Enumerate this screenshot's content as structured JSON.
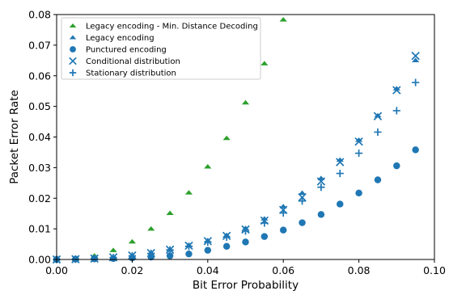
{
  "chart_data": {
    "type": "scatter",
    "xlabel": "Bit Error Probability",
    "ylabel": "Packet Error Rate",
    "xlim": [
      0.0,
      0.1
    ],
    "ylim": [
      0.0,
      0.08
    ],
    "grid": false,
    "legend_position": "top-left",
    "x_ticks": [
      "0.00",
      "0.02",
      "0.04",
      "0.06",
      "0.08",
      "0.10"
    ],
    "y_ticks": [
      "0.00",
      "0.01",
      "0.02",
      "0.03",
      "0.04",
      "0.05",
      "0.06",
      "0.07",
      "0.08"
    ],
    "series": [
      {
        "name": "Legacy encoding - Min. Distance Decoding",
        "marker": "triangle",
        "color": "#2ca02c",
        "x": [
          0.0,
          0.005,
          0.01,
          0.015,
          0.02,
          0.025,
          0.03,
          0.035,
          0.04,
          0.045,
          0.05,
          0.055,
          0.06
        ],
        "y": [
          0.0,
          0.0003,
          0.0012,
          0.003,
          0.0058,
          0.01,
          0.0151,
          0.0218,
          0.0303,
          0.0396,
          0.0512,
          0.064,
          0.0783
        ]
      },
      {
        "name": "Legacy encoding",
        "marker": "triangle",
        "color": "#1f77b4",
        "x": [
          0.0,
          0.005,
          0.01,
          0.015,
          0.02,
          0.025,
          0.03,
          0.035,
          0.04,
          0.045,
          0.05,
          0.055,
          0.06,
          0.065,
          0.07,
          0.075,
          0.08,
          0.085,
          0.09,
          0.095
        ],
        "y": [
          0.0,
          0.0001,
          0.0003,
          0.0007,
          0.0013,
          0.0022,
          0.0033,
          0.0046,
          0.0062,
          0.0079,
          0.0102,
          0.0133,
          0.0173,
          0.0217,
          0.0265,
          0.0325,
          0.039,
          0.047,
          0.0558,
          0.065
        ]
      },
      {
        "name": "Punctured encoding",
        "marker": "circle",
        "color": "#1f77b4",
        "x": [
          0.0,
          0.005,
          0.01,
          0.015,
          0.02,
          0.025,
          0.03,
          0.035,
          0.04,
          0.045,
          0.05,
          0.055,
          0.06,
          0.065,
          0.07,
          0.075,
          0.08,
          0.085,
          0.09,
          0.095
        ],
        "y": [
          0.0,
          0.0001,
          0.0002,
          0.0003,
          0.0005,
          0.0008,
          0.0012,
          0.0018,
          0.003,
          0.0043,
          0.0057,
          0.0075,
          0.0096,
          0.012,
          0.0147,
          0.0181,
          0.0217,
          0.026,
          0.0306,
          0.0358
        ]
      },
      {
        "name": "Conditional distribution",
        "marker": "x",
        "color": "#1f77b4",
        "x": [
          0.0,
          0.005,
          0.01,
          0.015,
          0.02,
          0.025,
          0.03,
          0.035,
          0.04,
          0.045,
          0.05,
          0.055,
          0.06,
          0.065,
          0.07,
          0.075,
          0.08,
          0.085,
          0.09,
          0.095
        ],
        "y": [
          0.0,
          0.0001,
          0.0003,
          0.0007,
          0.0013,
          0.0021,
          0.0032,
          0.0045,
          0.006,
          0.0077,
          0.0098,
          0.0127,
          0.0162,
          0.0203,
          0.0255,
          0.0318,
          0.0385,
          0.0468,
          0.0553,
          0.0665
        ]
      },
      {
        "name": "Stationary distribution",
        "marker": "plus",
        "color": "#1f77b4",
        "x": [
          0.0,
          0.005,
          0.01,
          0.015,
          0.02,
          0.025,
          0.03,
          0.035,
          0.04,
          0.045,
          0.05,
          0.055,
          0.06,
          0.065,
          0.07,
          0.075,
          0.08,
          0.085,
          0.09,
          0.095
        ],
        "y": [
          0.0,
          0.0001,
          0.0003,
          0.0006,
          0.0012,
          0.002,
          0.0031,
          0.0043,
          0.0057,
          0.0073,
          0.0093,
          0.0119,
          0.0152,
          0.0191,
          0.0236,
          0.0281,
          0.0347,
          0.0416,
          0.0486,
          0.0578
        ]
      }
    ]
  }
}
